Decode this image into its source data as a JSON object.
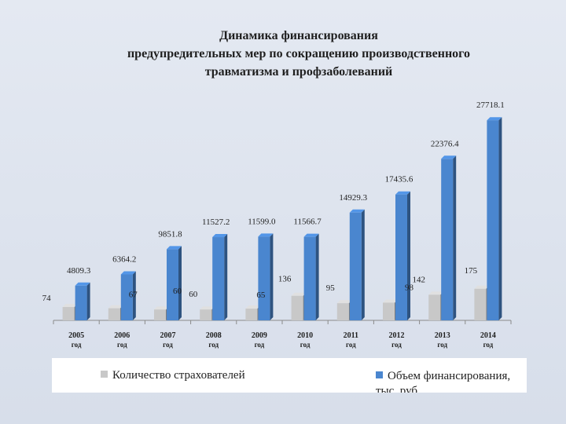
{
  "title_lines": [
    "Динамика финансирования",
    "предупредительных мер по сокращению производственного",
    "травматизма и профзаболеваний"
  ],
  "chart_data": {
    "type": "bar",
    "categories": [
      "2005",
      "2006",
      "2007",
      "2008",
      "2009",
      "2010",
      "2011",
      "2012",
      "2013",
      "2014"
    ],
    "category_suffix": "год",
    "series": [
      {
        "name": "Количество страхователей",
        "color": "#c8c8c8",
        "values": [
          74,
          67,
          60,
          60,
          65,
          136,
          95,
          98,
          142,
          175
        ],
        "labels": [
          "74",
          "67",
          "60",
          "60",
          "65",
          "136",
          "95",
          "98",
          "142",
          "175"
        ]
      },
      {
        "name": "Объем финансирования, тыс. руб.",
        "color": "#4a86cf",
        "values": [
          4809.3,
          6364.2,
          9851.8,
          11527.2,
          11599.0,
          11566.7,
          14929.3,
          17435.6,
          22376.4,
          27718.1
        ],
        "labels": [
          "4809.3",
          "6364.2",
          "9851.8",
          "11527.2",
          "11599.0",
          "11566.7",
          "14929.3",
          "17435.6",
          "22376.4",
          "27718.1"
        ]
      }
    ],
    "gray_display_scale": [
      2500,
      2500,
      2500,
      2500,
      2500,
      2500,
      2500,
      2500,
      2500,
      2500
    ],
    "ylim": [
      0,
      28500
    ],
    "legend_position": "bottom"
  }
}
